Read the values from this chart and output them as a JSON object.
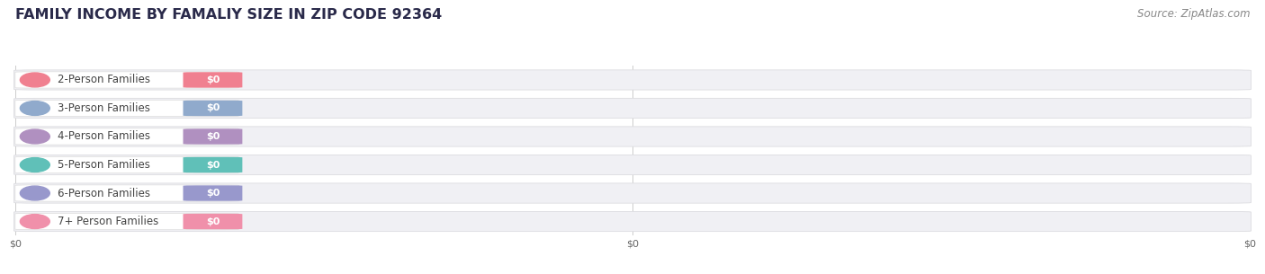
{
  "title": "FAMILY INCOME BY FAMALIY SIZE IN ZIP CODE 92364",
  "source": "Source: ZipAtlas.com",
  "categories": [
    "2-Person Families",
    "3-Person Families",
    "4-Person Families",
    "5-Person Families",
    "6-Person Families",
    "7+ Person Families"
  ],
  "values": [
    0,
    0,
    0,
    0,
    0,
    0
  ],
  "bar_colors": [
    "#f08090",
    "#90aacc",
    "#b090c0",
    "#60c0b8",
    "#9898cc",
    "#f090aa"
  ],
  "label_bg_color": "#ffffff",
  "bar_bg_color": "#f0f0f4",
  "bar_bg_edge_color": "#dcdce0",
  "value_label": "$0",
  "xtick_labels": [
    "$0",
    "$0",
    "$0"
  ],
  "background_color": "#ffffff",
  "title_fontsize": 11.5,
  "source_fontsize": 8.5,
  "label_fontsize": 8.5,
  "title_color": "#2a2a4a",
  "source_color": "#888888",
  "label_text_color": "#444444"
}
